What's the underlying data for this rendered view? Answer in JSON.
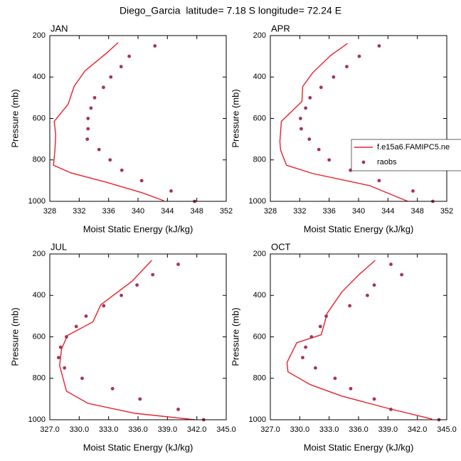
{
  "title": "Diego_Garcia  latitude= 7.18 S longitude= 72.24 E",
  "chart_data": [
    {
      "type": "line",
      "title": "JAN",
      "xlabel": "Moist Static Energy (kJ/kg)",
      "ylabel": "Pressure (mb)",
      "xlim": [
        328,
        352
      ],
      "xticks": [
        328,
        332,
        336,
        340,
        344,
        348,
        352
      ],
      "ylim": [
        1000,
        200
      ],
      "yticks": [
        200,
        400,
        600,
        800,
        1000
      ],
      "series": [
        {
          "style": "line",
          "color": "#e8202a",
          "x": [
            337.3,
            335.7,
            332.8,
            331.3,
            330.5,
            328.6,
            328.8,
            328.7,
            328.5,
            330.9,
            335.7,
            340.6,
            343.5
          ],
          "values": [
            234,
            285,
            370,
            446,
            531,
            614,
            679,
            754,
            826,
            863,
            908,
            959,
            997
          ]
        },
        {
          "style": "points",
          "color": "#a5345e",
          "x": [
            342.3,
            338.8,
            337.7,
            336.3,
            335.3,
            334.1,
            333.6,
            333.2,
            333.2,
            333.1,
            334.7,
            336.2,
            337.8,
            340.5,
            344.5,
            347.7
          ],
          "values": [
            250,
            300,
            350,
            400,
            450,
            500,
            550,
            600,
            650,
            700,
            750,
            800,
            850,
            900,
            950,
            1000
          ]
        }
      ]
    },
    {
      "type": "line",
      "title": "APR",
      "xlabel": "Moist Static Energy (kJ/kg)",
      "ylabel": "Pressure (mb)",
      "xlim": [
        328,
        352
      ],
      "xticks": [
        328,
        332,
        336,
        340,
        344,
        348,
        352
      ],
      "ylim": [
        1000,
        200
      ],
      "yticks": [
        200,
        400,
        600,
        800,
        1000
      ],
      "legend": "right",
      "series": [
        {
          "name": "f.e15a6.FAMIPC5.ne",
          "style": "line",
          "color": "#e8202a",
          "x": [
            338.5,
            336.2,
            333.8,
            332.4,
            332.3,
            329.5,
            329.3,
            329.4,
            330.2,
            333.8,
            341.5,
            346.7
          ],
          "values": [
            238,
            296,
            378,
            446,
            518,
            614,
            712,
            754,
            826,
            866,
            924,
            1000
          ]
        },
        {
          "name": "raobs",
          "style": "points",
          "color": "#a5345e",
          "x": [
            342.8,
            340.1,
            338.4,
            336.6,
            334.9,
            333.4,
            332.8,
            332.1,
            332.2,
            333.3,
            334.6,
            336.0,
            338.9,
            342.8,
            347.4,
            350.1
          ],
          "values": [
            250,
            300,
            350,
            400,
            450,
            500,
            550,
            600,
            650,
            700,
            750,
            800,
            850,
            900,
            950,
            1000
          ]
        }
      ]
    },
    {
      "type": "line",
      "title": "JUL",
      "xlabel": "Moist Static Energy (kJ/kg)",
      "ylabel": "Pressure (mb)",
      "xlim": [
        327,
        345
      ],
      "xticks": [
        {
          "value": 327,
          "label": "327.0"
        },
        {
          "value": 330,
          "label": "330.0"
        },
        {
          "value": 333,
          "label": "333.0"
        },
        {
          "value": 336,
          "label": "336.0"
        },
        {
          "value": 339,
          "label": "339.0"
        },
        {
          "value": 342,
          "label": "342.0"
        },
        {
          "value": 345,
          "label": "345.0"
        }
      ],
      "ylim": [
        1000,
        200
      ],
      "yticks": [
        200,
        400,
        600,
        800,
        1000
      ],
      "series": [
        {
          "style": "line",
          "color": "#e8202a",
          "x": [
            337.4,
            335.4,
            332.2,
            331.4,
            328.8,
            328.2,
            328.0,
            328.7,
            330.9,
            335.7,
            341.8
          ],
          "values": [
            231,
            331,
            445,
            528,
            593,
            659,
            738,
            862,
            921,
            969,
            1000
          ]
        },
        {
          "style": "points",
          "color": "#a5345e",
          "x": [
            340.1,
            337.5,
            335.9,
            334.3,
            332.5,
            330.7,
            329.7,
            328.7,
            328.1,
            327.9,
            328.5,
            330.3,
            333.4,
            336.2,
            340.1,
            342.7
          ],
          "values": [
            250,
            300,
            350,
            400,
            450,
            500,
            550,
            600,
            650,
            700,
            750,
            800,
            850,
            900,
            950,
            1000
          ]
        }
      ]
    },
    {
      "type": "line",
      "title": "OCT",
      "xlabel": "Moist Static Energy (kJ/kg)",
      "ylabel": "Pressure (mb)",
      "xlim": [
        327,
        345
      ],
      "xticks": [
        {
          "value": 327,
          "label": "327.0"
        },
        {
          "value": 330,
          "label": "330.0"
        },
        {
          "value": 333,
          "label": "333.0"
        },
        {
          "value": 336,
          "label": "336.0"
        },
        {
          "value": 339,
          "label": "339.0"
        },
        {
          "value": 342,
          "label": "342.0"
        },
        {
          "value": 345,
          "label": "345.0"
        }
      ],
      "ylim": [
        1000,
        200
      ],
      "yticks": [
        200,
        400,
        600,
        800,
        1000
      ],
      "series": [
        {
          "style": "line",
          "color": "#e8202a",
          "x": [
            337.7,
            336.1,
            334.3,
            332.8,
            332.2,
            329.7,
            328.7,
            328.8,
            331.1,
            334.3,
            339.0,
            343.5
          ],
          "values": [
            231,
            297,
            383,
            486,
            590,
            628,
            724,
            769,
            831,
            886,
            945,
            997
          ]
        },
        {
          "style": "points",
          "color": "#a5345e",
          "x": [
            339.3,
            340.4,
            337.6,
            336.9,
            335.1,
            332.7,
            332.1,
            331.2,
            330.6,
            330.3,
            331.6,
            333.6,
            335.2,
            337.6,
            339.3,
            344.2
          ],
          "values": [
            250,
            300,
            350,
            400,
            450,
            500,
            550,
            600,
            650,
            700,
            750,
            800,
            850,
            900,
            950,
            1000
          ]
        }
      ]
    }
  ]
}
